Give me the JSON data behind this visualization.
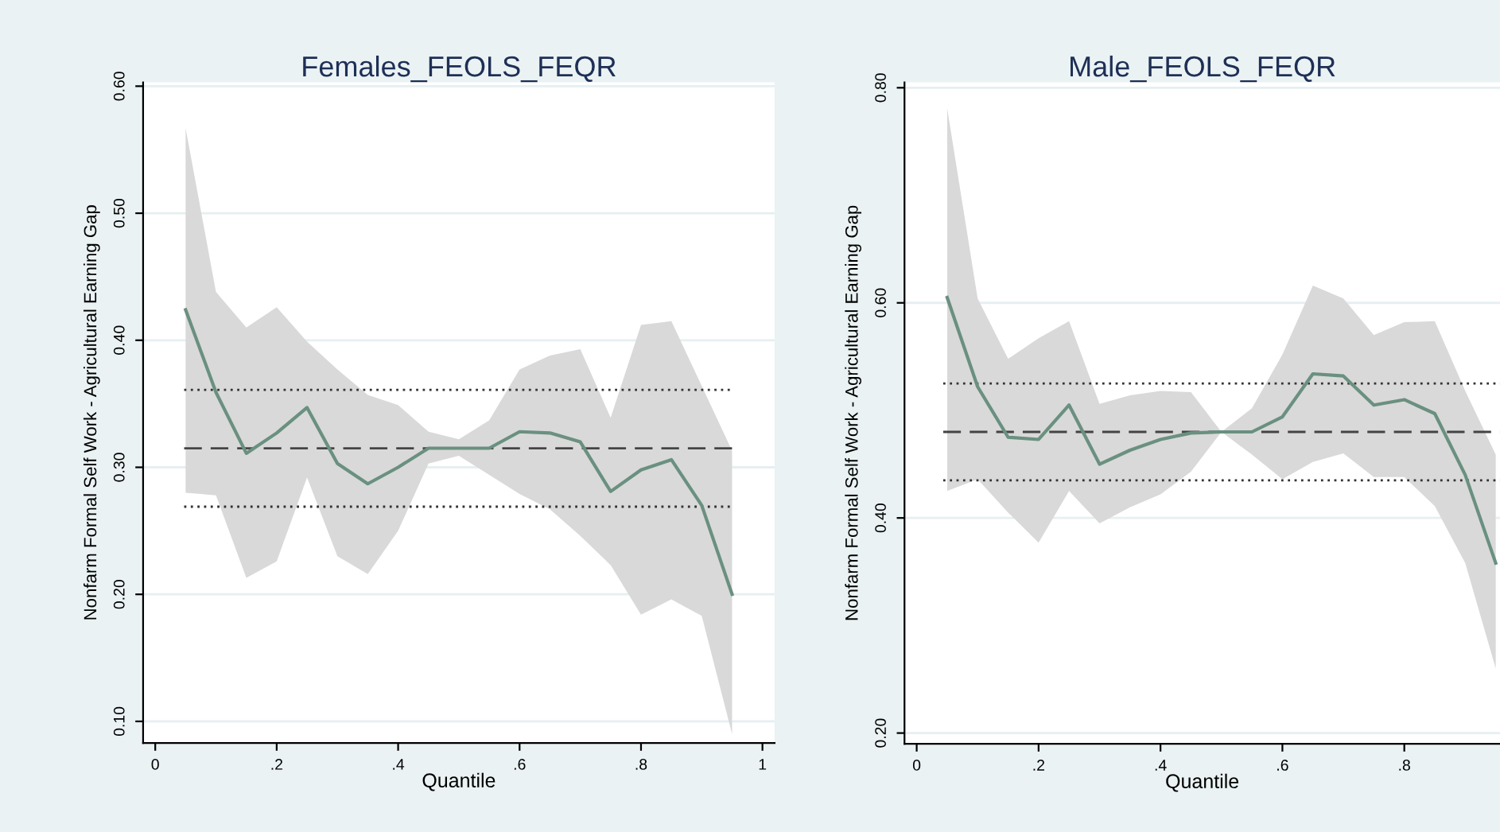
{
  "chart_data": [
    {
      "type": "line",
      "title": "Females_FEOLS_FEQR",
      "xlabel": "Quantile",
      "ylabel": "Nonfarm Formal Self Work - Agricultural Earning Gap",
      "x": [
        0.05,
        0.1,
        0.15,
        0.2,
        0.25,
        0.3,
        0.35,
        0.4,
        0.45,
        0.5,
        0.55,
        0.6,
        0.65,
        0.7,
        0.75,
        0.8,
        0.85,
        0.9,
        0.95
      ],
      "series": [
        {
          "color": "#6a9080",
          "values": [
            0.424,
            0.359,
            0.311,
            0.327,
            0.347,
            0.303,
            0.287,
            0.3,
            0.315,
            0.315,
            0.315,
            0.328,
            0.327,
            0.32,
            0.281,
            0.298,
            0.306,
            0.27,
            0.2
          ],
          "lower": [
            0.28,
            0.278,
            0.213,
            0.226,
            0.292,
            0.23,
            0.216,
            0.25,
            0.303,
            0.309,
            0.294,
            0.279,
            0.267,
            0.246,
            0.223,
            0.184,
            0.196,
            0.183,
            0.09
          ],
          "upper": [
            0.567,
            0.438,
            0.41,
            0.426,
            0.399,
            0.377,
            0.357,
            0.349,
            0.328,
            0.322,
            0.337,
            0.377,
            0.388,
            0.393,
            0.339,
            0.412,
            0.415,
            0.364,
            0.313
          ]
        }
      ],
      "ref_lines": [
        {
          "axis": "y",
          "value": 0.361,
          "color": "#333333",
          "line_style": "dotted"
        },
        {
          "axis": "y",
          "value": 0.315,
          "color": "#444444",
          "line_style": "dashed"
        },
        {
          "axis": "y",
          "value": 0.269,
          "color": "#333333",
          "line_style": "dotted"
        }
      ],
      "xlim": [
        -0.02,
        1.02
      ],
      "ylim": [
        0.083,
        0.603
      ],
      "xticks": [
        0,
        {
          "value": 0.2,
          "label": ".2"
        },
        {
          "value": 0.4,
          "label": ".4"
        },
        {
          "value": 0.6,
          "label": ".6"
        },
        {
          "value": 0.8,
          "label": ".8"
        },
        1
      ],
      "yticks": [
        {
          "value": 0.1,
          "label": "0.10"
        },
        {
          "value": 0.2,
          "label": "0.20"
        },
        {
          "value": 0.3,
          "label": "0.30"
        },
        {
          "value": 0.4,
          "label": "0.40"
        },
        {
          "value": 0.5,
          "label": "0.50"
        },
        {
          "value": 0.6,
          "label": "0.60"
        }
      ],
      "grid": "y",
      "marker": "none",
      "line_style": "solid"
    },
    {
      "type": "line",
      "title": "Male_FEOLS_FEQR",
      "xlabel": "Quantile",
      "ylabel": "Nonfarm Formal Self Work - Agricultural Earning Gap",
      "x": [
        0.05,
        0.1,
        0.15,
        0.2,
        0.25,
        0.3,
        0.35,
        0.4,
        0.45,
        0.5,
        0.55,
        0.6,
        0.65,
        0.7,
        0.75,
        0.8,
        0.85,
        0.9,
        0.95
      ],
      "series": [
        {
          "color": "#6a9080",
          "values": [
            0.605,
            0.522,
            0.475,
            0.473,
            0.505,
            0.45,
            0.463,
            0.473,
            0.479,
            0.48,
            0.48,
            0.494,
            0.534,
            0.532,
            0.505,
            0.51,
            0.497,
            0.44,
            0.358
          ],
          "lower": [
            0.425,
            0.436,
            0.405,
            0.377,
            0.425,
            0.395,
            0.41,
            0.422,
            0.443,
            0.48,
            0.459,
            0.436,
            0.452,
            0.46,
            0.438,
            0.438,
            0.411,
            0.358,
            0.26
          ],
          "upper": [
            0.781,
            0.604,
            0.548,
            0.567,
            0.583,
            0.506,
            0.514,
            0.518,
            0.517,
            0.48,
            0.502,
            0.552,
            0.616,
            0.604,
            0.57,
            0.582,
            0.583,
            0.518,
            0.459
          ]
        }
      ],
      "ref_lines": [
        {
          "axis": "y",
          "value": 0.525,
          "color": "#333333",
          "line_style": "dotted"
        },
        {
          "axis": "y",
          "value": 0.48,
          "color": "#444444",
          "line_style": "dashed"
        },
        {
          "axis": "y",
          "value": 0.435,
          "color": "#333333",
          "line_style": "dotted"
        }
      ],
      "xlim": [
        -0.02,
        0.957
      ],
      "ylim": [
        0.19,
        0.805
      ],
      "xticks": [
        0,
        {
          "value": 0.2,
          "label": ".2"
        },
        {
          "value": 0.4,
          "label": ".4"
        },
        {
          "value": 0.6,
          "label": ".6"
        },
        {
          "value": 0.8,
          "label": ".8"
        }
      ],
      "yticks": [
        {
          "value": 0.2,
          "label": "0.20"
        },
        {
          "value": 0.4,
          "label": "0.40"
        },
        {
          "value": 0.6,
          "label": "0.60"
        },
        {
          "value": 0.8,
          "label": "0.80"
        }
      ],
      "grid": "y",
      "marker": "none",
      "line_style": "solid"
    }
  ]
}
